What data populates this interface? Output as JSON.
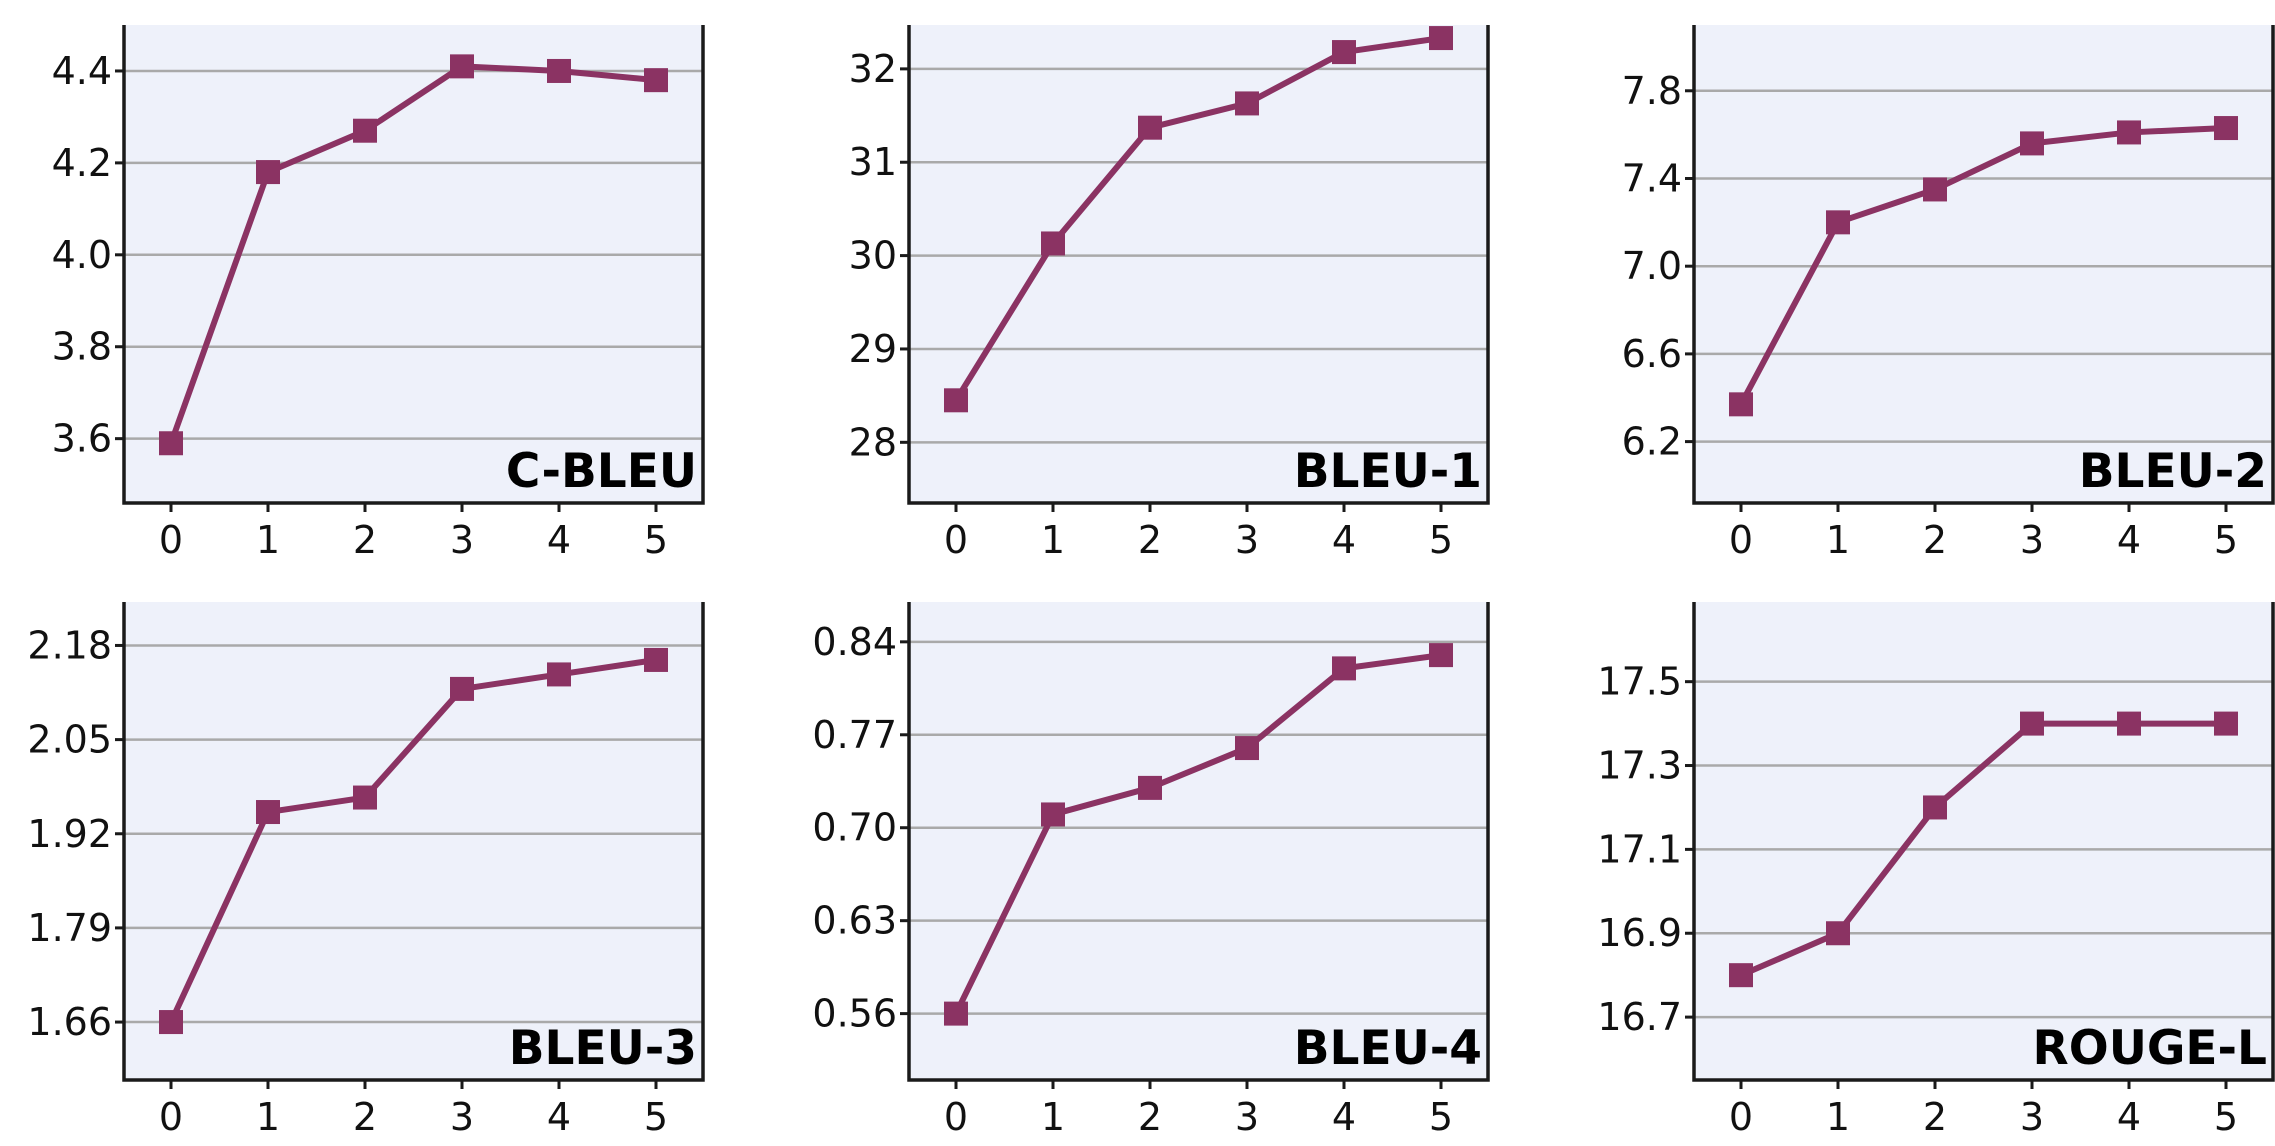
{
  "style": {
    "series_color": "#8b3363",
    "plot_background": "#eef1fa",
    "grid_color": "#a9a9a9"
  },
  "chart_data": [
    {
      "type": "line",
      "title": "C-BLEU",
      "x": [
        0,
        1,
        2,
        3,
        4,
        5
      ],
      "x_tick_labels": [
        "0",
        "1",
        "2",
        "3",
        "4",
        "5"
      ],
      "values": [
        3.59,
        4.18,
        4.27,
        4.41,
        4.4,
        4.38
      ],
      "y_ticks": [
        3.6,
        3.8,
        4.0,
        4.2,
        4.4
      ],
      "y_tick_labels": [
        "3.6",
        "3.8",
        "4.0",
        "4.2",
        "4.4"
      ],
      "ylim": [
        3.46,
        4.5
      ],
      "xlabel": "",
      "ylabel": "",
      "grid": "horizontal",
      "marker": "square"
    },
    {
      "type": "line",
      "title": "BLEU-1",
      "x": [
        0,
        1,
        2,
        3,
        4,
        5
      ],
      "x_tick_labels": [
        "0",
        "1",
        "2",
        "3",
        "4",
        "5"
      ],
      "values": [
        28.45,
        30.13,
        31.37,
        31.63,
        32.18,
        32.33
      ],
      "y_ticks": [
        28,
        29,
        30,
        31,
        32
      ],
      "y_tick_labels": [
        "28",
        "29",
        "30",
        "31",
        "32"
      ],
      "ylim": [
        27.35,
        32.47
      ],
      "xlabel": "",
      "ylabel": "",
      "grid": "horizontal",
      "marker": "square"
    },
    {
      "type": "line",
      "title": "BLEU-2",
      "x": [
        0,
        1,
        2,
        3,
        4,
        5
      ],
      "x_tick_labels": [
        "0",
        "1",
        "2",
        "3",
        "4",
        "5"
      ],
      "values": [
        6.37,
        7.2,
        7.35,
        7.56,
        7.61,
        7.63
      ],
      "y_ticks": [
        6.2,
        6.6,
        7.0,
        7.4,
        7.8
      ],
      "y_tick_labels": [
        "6.2",
        "6.6",
        "7.0",
        "7.4",
        "7.8"
      ],
      "ylim": [
        5.92,
        8.1
      ],
      "xlabel": "",
      "ylabel": "",
      "grid": "horizontal",
      "marker": "square"
    },
    {
      "type": "line",
      "title": "BLEU-3",
      "x": [
        0,
        1,
        2,
        3,
        4,
        5
      ],
      "x_tick_labels": [
        "0",
        "1",
        "2",
        "3",
        "4",
        "5"
      ],
      "values": [
        1.66,
        1.95,
        1.97,
        2.12,
        2.14,
        2.16
      ],
      "y_ticks": [
        1.66,
        1.79,
        1.92,
        2.05,
        2.18
      ],
      "y_tick_labels": [
        "1.66",
        "1.79",
        "1.92",
        "2.05",
        "2.18"
      ],
      "ylim": [
        1.58,
        2.24
      ],
      "xlabel": "",
      "ylabel": "",
      "grid": "horizontal",
      "marker": "square"
    },
    {
      "type": "line",
      "title": "BLEU-4",
      "x": [
        0,
        1,
        2,
        3,
        4,
        5
      ],
      "x_tick_labels": [
        "0",
        "1",
        "2",
        "3",
        "4",
        "5"
      ],
      "values": [
        0.56,
        0.71,
        0.73,
        0.76,
        0.82,
        0.83
      ],
      "y_ticks": [
        0.56,
        0.63,
        0.7,
        0.77,
        0.84
      ],
      "y_tick_labels": [
        "0.56",
        "0.63",
        "0.70",
        "0.77",
        "0.84"
      ],
      "ylim": [
        0.51,
        0.87
      ],
      "xlabel": "",
      "ylabel": "",
      "grid": "horizontal",
      "marker": "square"
    },
    {
      "type": "line",
      "title": "ROUGE-L",
      "x": [
        0,
        1,
        2,
        3,
        4,
        5
      ],
      "x_tick_labels": [
        "0",
        "1",
        "2",
        "3",
        "4",
        "5"
      ],
      "values": [
        16.8,
        16.9,
        17.2,
        17.4,
        17.4,
        17.4
      ],
      "y_ticks": [
        16.7,
        16.9,
        17.1,
        17.3,
        17.5
      ],
      "y_tick_labels": [
        "16.7",
        "16.9",
        "17.1",
        "17.3",
        "17.5"
      ],
      "ylim": [
        16.55,
        17.69
      ],
      "xlabel": "",
      "ylabel": "",
      "grid": "horizontal",
      "marker": "square"
    }
  ]
}
